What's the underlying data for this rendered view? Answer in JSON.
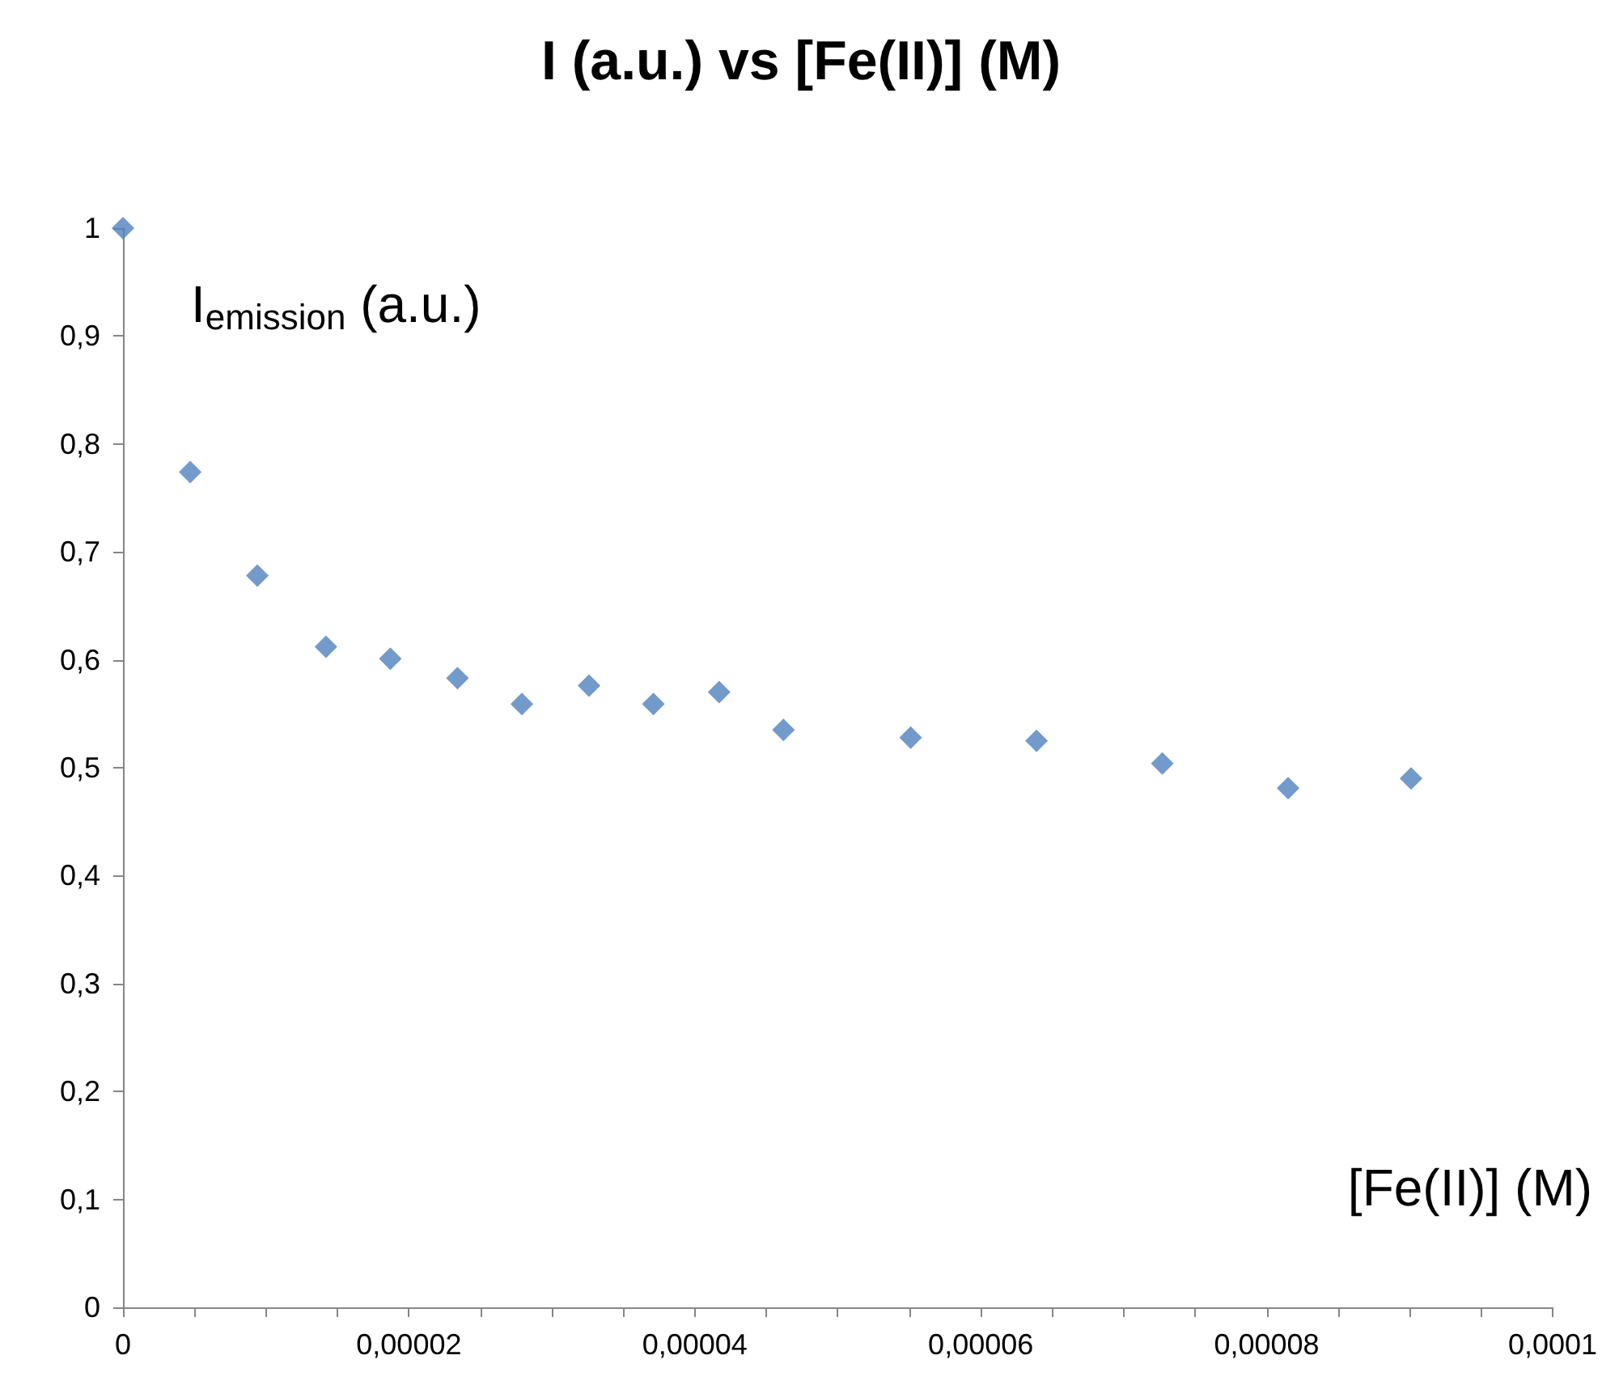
{
  "chart_data": {
    "type": "scatter",
    "title": "I (a.u.) vs [Fe(II)] (M)",
    "xlabel": "[Fe(II)] (M)",
    "ylabel": "I$_{emission}$ (a.u.)",
    "x": [
      0,
      4.7e-06,
      9.4e-06,
      1.42e-05,
      1.87e-05,
      2.34e-05,
      2.79e-05,
      3.26e-05,
      3.71e-05,
      4.17e-05,
      4.62e-05,
      5.51e-05,
      6.39e-05,
      7.27e-05,
      8.15e-05,
      9.01e-05
    ],
    "series": [
      {
        "color": "#4f81bd",
        "values": [
          1,
          0.774,
          0.678,
          0.612,
          0.601,
          0.583,
          0.559,
          0.576,
          0.559,
          0.57,
          0.535,
          0.528,
          0.525,
          0.504,
          0.481,
          0.49
        ]
      }
    ],
    "marker": "diamond",
    "grid": false,
    "xlim": [
      0,
      0.0001
    ],
    "xticks": [
      {
        "value": 0,
        "label": "0"
      },
      {
        "value": 5e-06,
        "label": null
      },
      {
        "value": 1e-05,
        "label": null
      },
      {
        "value": 1.5e-05,
        "label": null
      },
      {
        "value": 2e-05,
        "label": "0,00002"
      },
      {
        "value": 2.5e-05,
        "label": null
      },
      {
        "value": 3e-05,
        "label": null
      },
      {
        "value": 3.5e-05,
        "label": null
      },
      {
        "value": 4e-05,
        "label": "0,00004"
      },
      {
        "value": 4.5e-05,
        "label": null
      },
      {
        "value": 5e-05,
        "label": null
      },
      {
        "value": 5.5e-05,
        "label": null
      },
      {
        "value": 6e-05,
        "label": "0,00006"
      },
      {
        "value": 6.5e-05,
        "label": null
      },
      {
        "value": 7e-05,
        "label": null
      },
      {
        "value": 7.5e-05,
        "label": null
      },
      {
        "value": 8e-05,
        "label": "0,00008"
      },
      {
        "value": 8.5e-05,
        "label": null
      },
      {
        "value": 9e-05,
        "label": null
      },
      {
        "value": 9.5e-05,
        "label": null
      },
      {
        "value": 0.0001,
        "label": "0,0001"
      }
    ],
    "ylim": [
      0,
      1
    ],
    "yticks": [
      {
        "value": 0,
        "label": "0"
      },
      {
        "value": 0.1,
        "label": "0,1"
      },
      {
        "value": 0.2,
        "label": "0,2"
      },
      {
        "value": 0.3,
        "label": "0,3"
      },
      {
        "value": 0.4,
        "label": "0,4"
      },
      {
        "value": 0.5,
        "label": "0,5"
      },
      {
        "value": 0.6,
        "label": "0,6"
      },
      {
        "value": 0.7,
        "label": "0,7"
      },
      {
        "value": 0.8,
        "label": "0,8"
      },
      {
        "value": 0.9,
        "label": "0,9"
      },
      {
        "value": 1,
        "label": "1"
      }
    ]
  }
}
